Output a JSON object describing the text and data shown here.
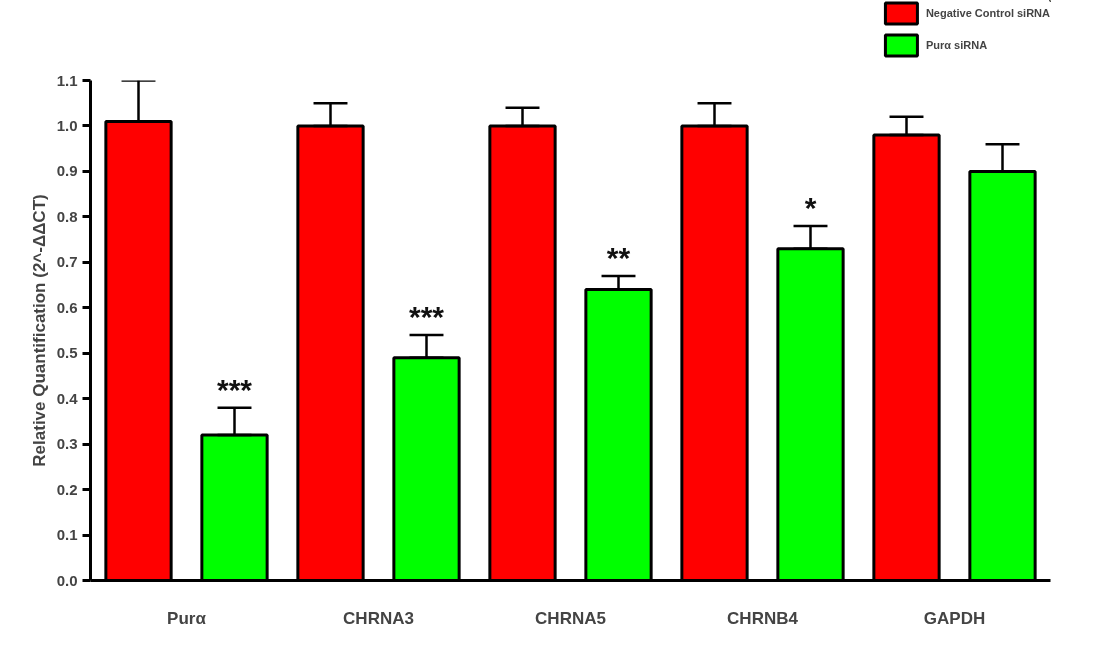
{
  "chart_data": {
    "type": "bar",
    "categories": [
      "Purα",
      "CHRNA3",
      "CHRNA5",
      "CHRNB4",
      "GAPDH"
    ],
    "ylabel": "Relative Quantification (2^-ΔΔCT)",
    "series": [
      {
        "name": "Negative Control siRNA",
        "color": "#ff0000",
        "values": [
          1.01,
          1.0,
          1.0,
          1.0,
          0.98
        ],
        "errors": [
          [
            1.01,
            1.1
          ],
          [
            1.0,
            1.05
          ],
          [
            1.0,
            1.04
          ],
          [
            1.0,
            1.05
          ],
          [
            0.98,
            1.02
          ]
        ]
      },
      {
        "name": "Purα siRNA",
        "color": "#00ff00",
        "values": [
          0.32,
          0.49,
          0.64,
          0.73,
          0.9
        ],
        "errors": [
          [
            0.32,
            0.38
          ],
          [
            0.49,
            0.54
          ],
          [
            0.64,
            0.67
          ],
          [
            0.73,
            0.78
          ],
          [
            0.9,
            0.96
          ]
        ]
      }
    ],
    "ylim": [
      0,
      1.1
    ],
    "yticks": [
      {
        "value": 0,
        "label": "0.0"
      },
      {
        "value": 0.1,
        "label": "0.1"
      },
      {
        "value": 0.2,
        "label": "0.2"
      },
      {
        "value": 0.3,
        "label": "0.3"
      },
      {
        "value": 0.4,
        "label": "0.4"
      },
      {
        "value": 0.5,
        "label": "0.5"
      },
      {
        "value": 0.6,
        "label": "0.6"
      },
      {
        "value": 0.7,
        "label": "0.7"
      },
      {
        "value": 0.8,
        "label": "0.8"
      },
      {
        "value": 0.9,
        "label": "0.9"
      },
      {
        "value": 1.0,
        "label": "1.0"
      },
      {
        "value": 1.1,
        "label": "1.1"
      }
    ],
    "annotations": [
      "***",
      "***",
      "**",
      "*"
    ],
    "grid": false,
    "legend": "top right"
  }
}
